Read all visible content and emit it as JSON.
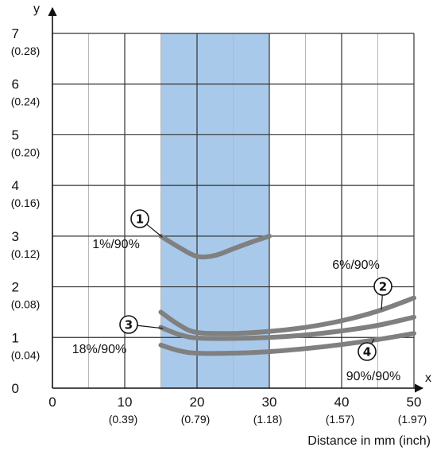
{
  "chart_data": {
    "type": "line",
    "title": "",
    "xlabel": "Distance in mm (inch)",
    "ylabel": "y",
    "x_axis_letter": "x",
    "y_axis_letter": "y",
    "xlim": [
      0,
      50
    ],
    "ylim": [
      0,
      7
    ],
    "grid": true,
    "x_ticks": [
      {
        "value": 0,
        "label": "0",
        "sub": ""
      },
      {
        "value": 10,
        "label": "10",
        "sub": "(0.39)"
      },
      {
        "value": 20,
        "label": "20",
        "sub": "(0.79)"
      },
      {
        "value": 30,
        "label": "30",
        "sub": "(1.18)"
      },
      {
        "value": 40,
        "label": "40",
        "sub": "(1.57)"
      },
      {
        "value": 50,
        "label": "50",
        "sub": "(1.97)"
      }
    ],
    "y_ticks": [
      {
        "value": 0,
        "label": "0",
        "sub": ""
      },
      {
        "value": 1,
        "label": "1",
        "sub": "(0.04)"
      },
      {
        "value": 2,
        "label": "2",
        "sub": "(0.08)"
      },
      {
        "value": 3,
        "label": "3",
        "sub": "(0.12)"
      },
      {
        "value": 4,
        "label": "4",
        "sub": "(0.16)"
      },
      {
        "value": 5,
        "label": "5",
        "sub": "(0.20)"
      },
      {
        "value": 6,
        "label": "6",
        "sub": "(0.24)"
      },
      {
        "value": 7,
        "label": "7",
        "sub": "(0.28)"
      }
    ],
    "highlight_band": {
      "x_start": 15,
      "x_end": 30,
      "color": "#a9c9ea"
    },
    "series_color": "#808080",
    "series": [
      {
        "marker": "1",
        "label": "1%/90%",
        "x": [
          15,
          17.5,
          20,
          22.5,
          25,
          27.5,
          30
        ],
        "y": [
          3.0,
          2.78,
          2.6,
          2.62,
          2.75,
          2.88,
          3.0
        ]
      },
      {
        "marker": "2",
        "label": "6%/90%",
        "x": [
          15,
          17.5,
          20,
          25,
          30,
          35,
          40,
          45,
          50
        ],
        "y": [
          1.5,
          1.25,
          1.1,
          1.08,
          1.12,
          1.2,
          1.33,
          1.52,
          1.78
        ]
      },
      {
        "marker": "3",
        "label": "18%/90%",
        "x": [
          15,
          17.5,
          20,
          25,
          30,
          35,
          40,
          45,
          50
        ],
        "y": [
          1.2,
          1.06,
          0.99,
          0.98,
          1.0,
          1.05,
          1.13,
          1.24,
          1.4
        ]
      },
      {
        "marker": "4",
        "label": "90%/90%",
        "x": [
          15,
          17.5,
          20,
          25,
          30,
          35,
          40,
          45,
          50
        ],
        "y": [
          0.85,
          0.74,
          0.69,
          0.69,
          0.72,
          0.78,
          0.86,
          0.96,
          1.08
        ]
      }
    ]
  }
}
